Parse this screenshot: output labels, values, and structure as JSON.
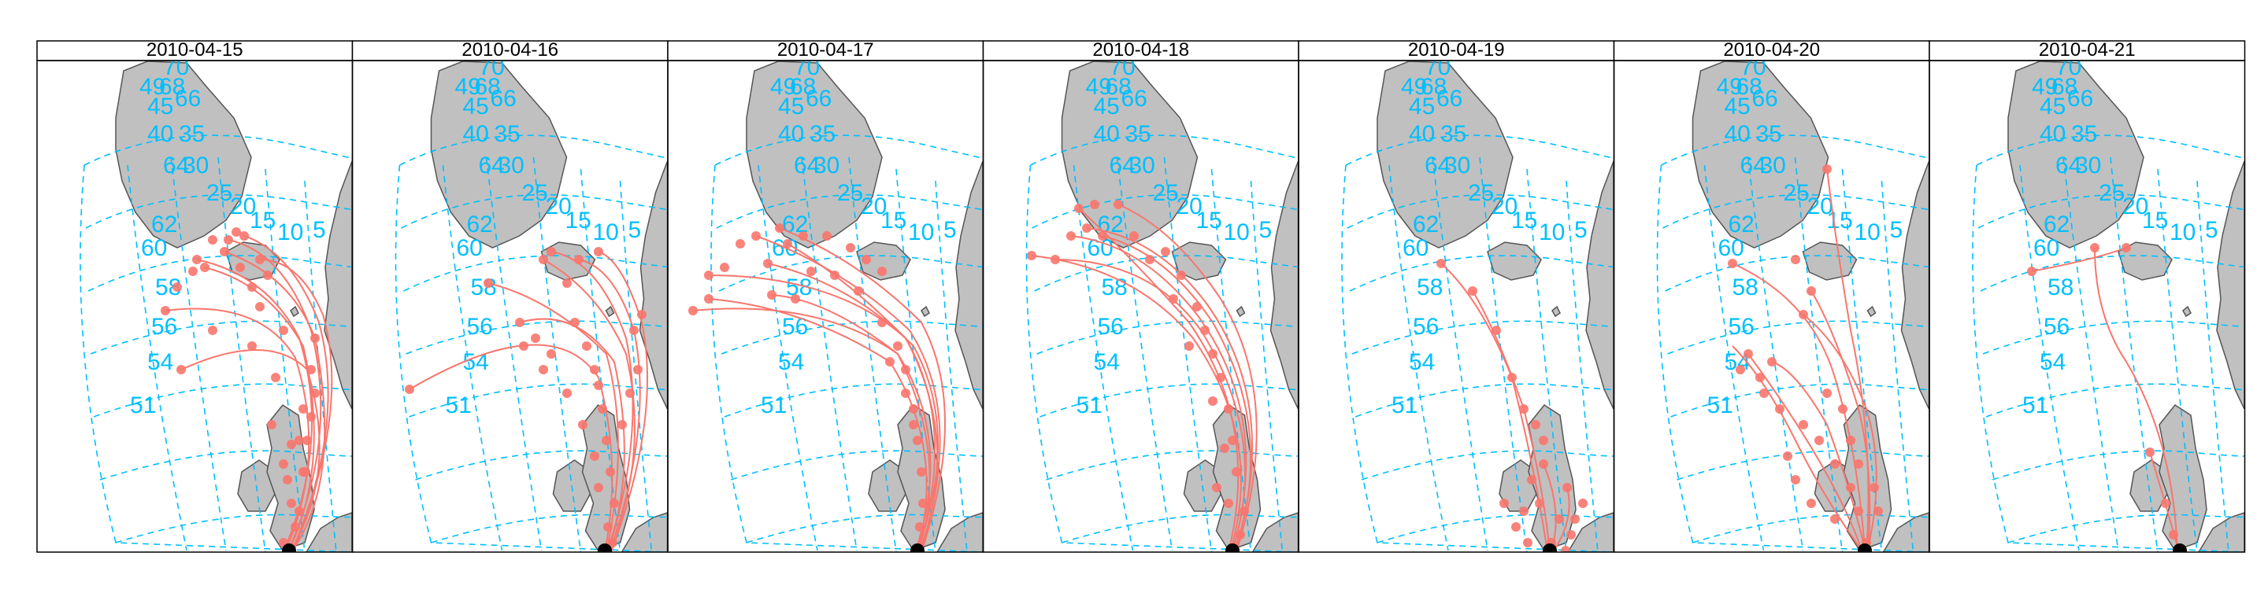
{
  "colors": {
    "trajectory": "#F8766D",
    "graticule": "#00BFFF",
    "land": "#C0C0C0",
    "coast": "#555555",
    "receptor": "#000000"
  },
  "grid_labels": [
    "70",
    "49",
    "68",
    "45",
    "66",
    "40",
    "35",
    "64",
    "30",
    "25",
    "62",
    "20",
    "15",
    "10",
    "60",
    "5",
    "58",
    "56",
    "54",
    "51"
  ],
  "panels": [
    {
      "date": "2010-04-15"
    },
    {
      "date": "2010-04-16"
    },
    {
      "date": "2010-04-17"
    },
    {
      "date": "2010-04-18"
    },
    {
      "date": "2010-04-19"
    },
    {
      "date": "2010-04-20"
    },
    {
      "date": "2010-04-21"
    }
  ]
}
